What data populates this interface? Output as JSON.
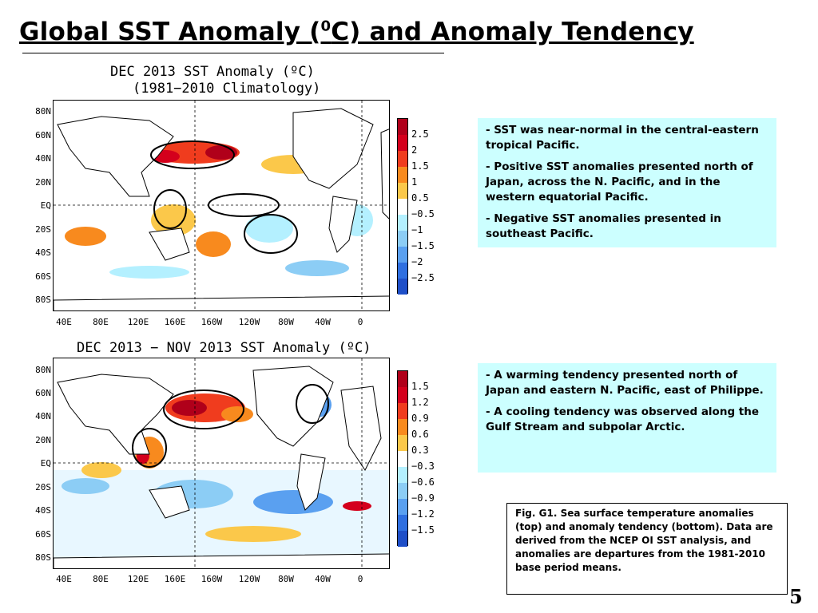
{
  "slide": {
    "title_pre": "Global SST Anomaly (",
    "title_sup": "0",
    "title_post": "C) and Anomaly Tendency",
    "page_number": "5"
  },
  "top_map": {
    "title_line1": "DEC 2013 SST Anomaly (ºC)",
    "title_line2": "(1981−2010 Climatology)",
    "y_labels": [
      "80N",
      "60N",
      "40N",
      "20N",
      "EQ",
      "20S",
      "40S",
      "60S",
      "80S"
    ],
    "x_labels": [
      "40E",
      "80E",
      "120E",
      "160E",
      "160W",
      "120W",
      "80W",
      "40W",
      "0"
    ],
    "colorbar_labels": [
      "2.5",
      "2",
      "1.5",
      "1",
      "0.5",
      "−0.5",
      "−1",
      "−1.5",
      "−2",
      "−2.5"
    ],
    "colorbar_colors": [
      "#b0001a",
      "#d4001c",
      "#f03c1e",
      "#f88a1e",
      "#fbc84a",
      "#ffffff",
      "#b4f0ff",
      "#8ccdf5",
      "#5aa0f0",
      "#2f6fe0",
      "#1f4fc8"
    ]
  },
  "bottom_map": {
    "title": "DEC 2013 − NOV 2013 SST Anomaly (ºC)",
    "y_labels": [
      "80N",
      "60N",
      "40N",
      "20N",
      "EQ",
      "20S",
      "40S",
      "60S",
      "80S"
    ],
    "x_labels": [
      "40E",
      "80E",
      "120E",
      "160E",
      "160W",
      "120W",
      "80W",
      "40W",
      "0"
    ],
    "colorbar_labels": [
      "1.5",
      "1.2",
      "0.9",
      "0.6",
      "0.3",
      "−0.3",
      "−0.6",
      "−0.9",
      "−1.2",
      "−1.5"
    ],
    "colorbar_colors": [
      "#b0001a",
      "#d4001c",
      "#f03c1e",
      "#f88a1e",
      "#fbc84a",
      "#ffffff",
      "#b4f0ff",
      "#8ccdf5",
      "#5aa0f0",
      "#2f6fe0",
      "#1f4fc8"
    ]
  },
  "top_notes": [
    {
      "dash": "-",
      "text": " SST was near-normal in the central-eastern tropical Pacific."
    },
    {
      "dash": "-",
      "text": " Positive SST anomalies presented north of Japan, across the N. Pacific, and  in the western equatorial Pacific."
    },
    {
      "dash": "-",
      "text": " Negative SST anomalies presented in southeast Pacific."
    }
  ],
  "bottom_notes": [
    {
      "dash": "-",
      "text": " A warming tendency presented north of Japan and eastern N. Pacific, east of Philippe."
    },
    {
      "dash": "-",
      "text": " A cooling tendency was observed along the Gulf Stream and subpolar Arctic."
    }
  ],
  "caption": "Fig. G1. Sea surface temperature anomalies (top) and anomaly tendency (bottom). Data are derived from the NCEP OI SST analysis, and anomalies are departures from the 1981-2010 base period means."
}
